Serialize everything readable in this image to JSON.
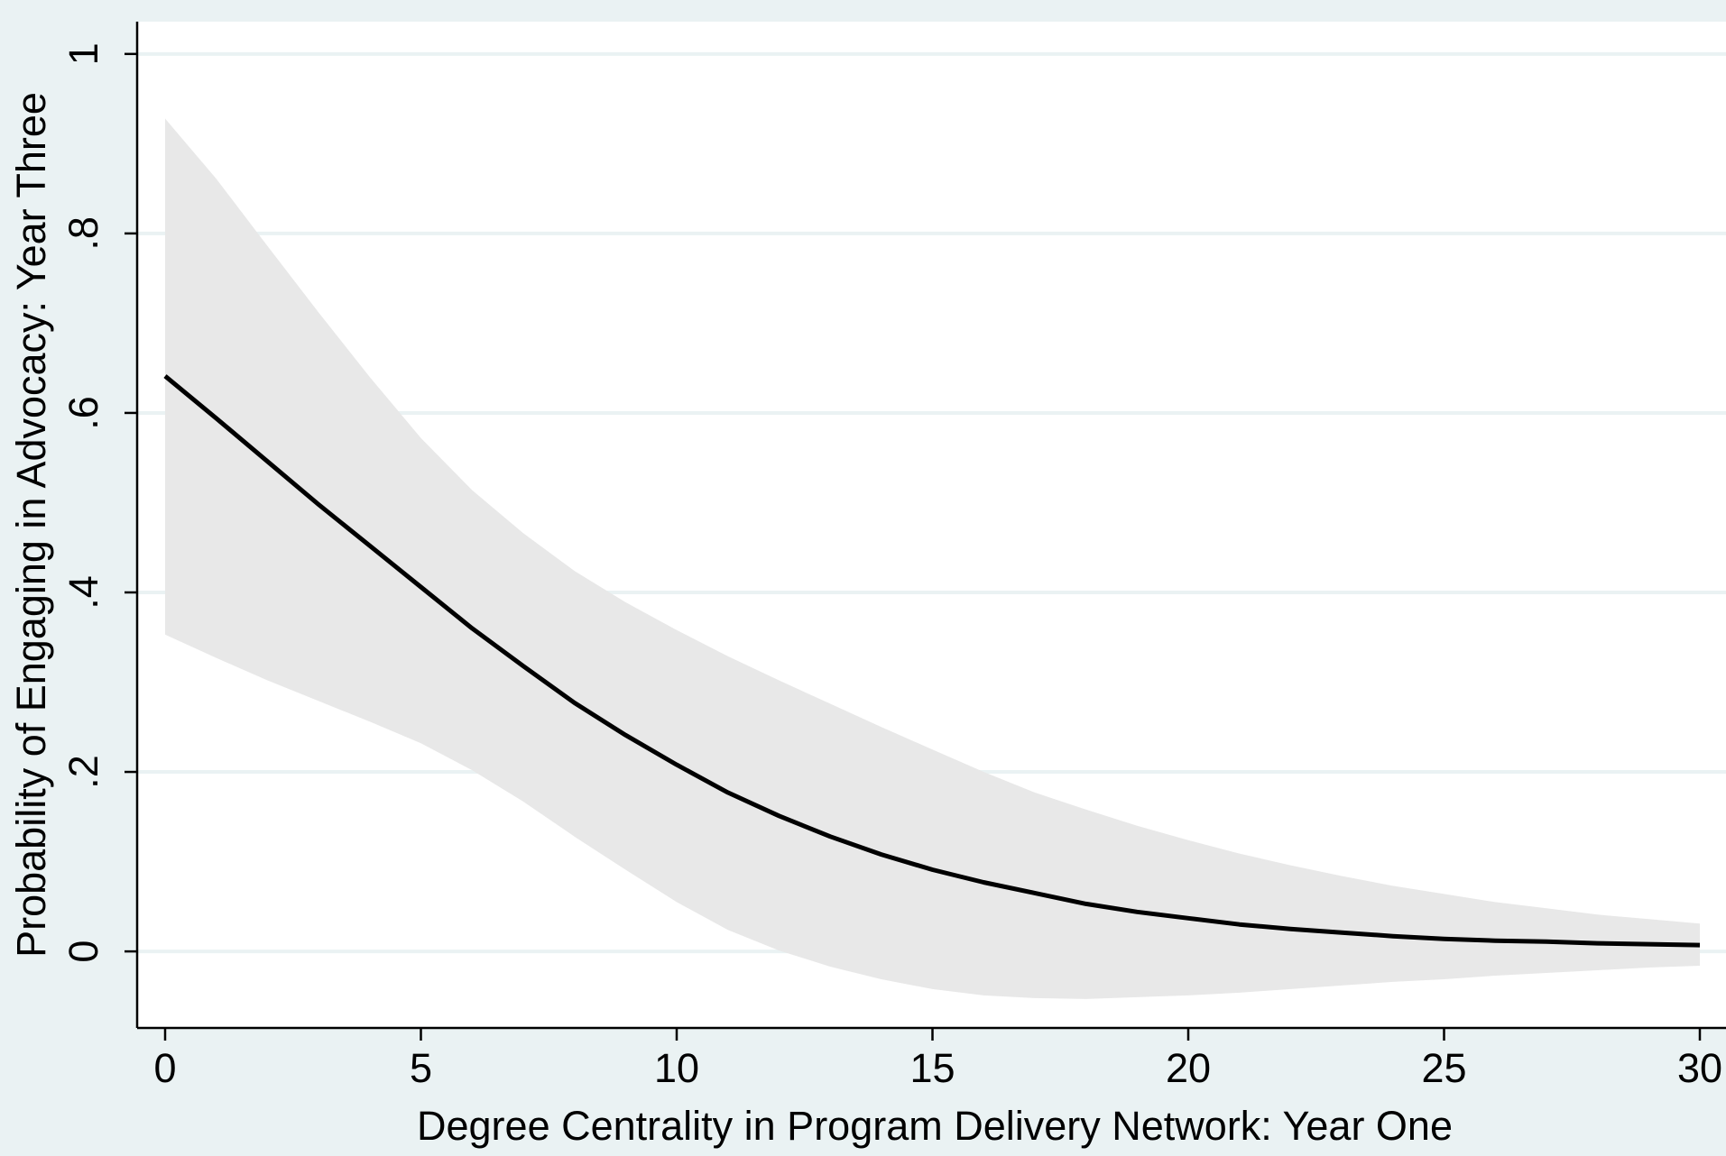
{
  "chart_data": {
    "type": "line",
    "title": "",
    "xlabel": "Degree Centrality in Program Delivery Network: Year One",
    "ylabel": "Probability of Engaging in Advocacy: Year Three",
    "xlim": [
      0,
      30
    ],
    "ylim": [
      -0.0853,
      1.036
    ],
    "x_ticks": [
      {
        "value": 0,
        "label": "0"
      },
      {
        "value": 5,
        "label": "5"
      },
      {
        "value": 10,
        "label": "10"
      },
      {
        "value": 15,
        "label": "15"
      },
      {
        "value": 20,
        "label": "20"
      },
      {
        "value": 25,
        "label": "25"
      },
      {
        "value": 30,
        "label": "30"
      }
    ],
    "y_ticks": [
      {
        "value": 0,
        "label": "0"
      },
      {
        "value": 0.2,
        "label": ".2"
      },
      {
        "value": 0.4,
        "label": ".4"
      },
      {
        "value": 0.6,
        "label": ".6"
      },
      {
        "value": 0.8,
        "label": ".8"
      },
      {
        "value": 1,
        "label": "1"
      }
    ],
    "grid": true,
    "legend": "none",
    "colors": {
      "background": "#eaf2f3",
      "plot_area": "#ffffff",
      "gridline": "#eaf2f3",
      "band": "#e8e8e8",
      "line": "#000000"
    },
    "x": [
      0,
      1,
      2,
      3,
      4,
      5,
      6,
      7,
      8,
      9,
      10,
      11,
      12,
      13,
      14,
      15,
      16,
      17,
      18,
      19,
      20,
      21,
      22,
      23,
      24,
      25,
      26,
      27,
      28,
      29,
      30
    ],
    "series": [
      {
        "kind": "line",
        "values": [
          0.641,
          0.594,
          0.546,
          0.498,
          0.452,
          0.406,
          0.36,
          0.318,
          0.277,
          0.241,
          0.208,
          0.177,
          0.151,
          0.128,
          0.108,
          0.091,
          0.077,
          0.065,
          0.053,
          0.044,
          0.037,
          0.03,
          0.025,
          0.021,
          0.017,
          0.014,
          0.012,
          0.011,
          0.009,
          0.008,
          0.007
        ]
      },
      {
        "kind": "band",
        "lower": [
          0.353,
          0.327,
          0.302,
          0.279,
          0.256,
          0.232,
          0.202,
          0.167,
          0.128,
          0.091,
          0.055,
          0.024,
          0.001,
          -0.017,
          -0.031,
          -0.042,
          -0.049,
          -0.052,
          -0.053,
          -0.051,
          -0.049,
          -0.046,
          -0.042,
          -0.038,
          -0.034,
          -0.031,
          -0.027,
          -0.024,
          -0.021,
          -0.018,
          -0.016
        ],
        "upper": [
          0.928,
          0.861,
          0.786,
          0.712,
          0.64,
          0.572,
          0.514,
          0.466,
          0.424,
          0.389,
          0.358,
          0.329,
          0.302,
          0.276,
          0.25,
          0.225,
          0.2,
          0.177,
          0.158,
          0.14,
          0.124,
          0.109,
          0.096,
          0.084,
          0.073,
          0.064,
          0.055,
          0.048,
          0.041,
          0.036,
          0.031
        ]
      }
    ]
  }
}
